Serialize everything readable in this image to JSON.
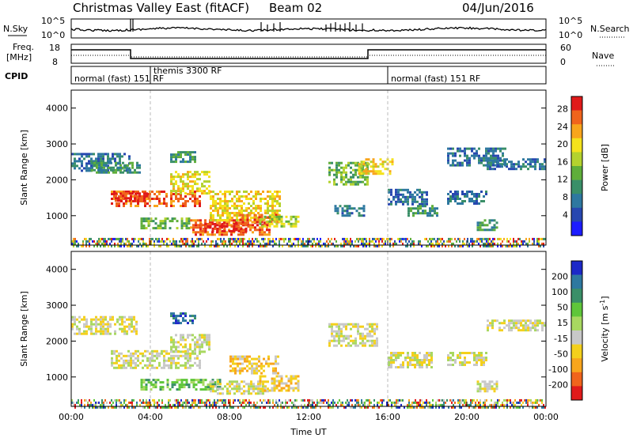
{
  "header": {
    "station_title": "Christmas Valley East (fitACF)",
    "beam": "Beam 02",
    "date": "04/Jun/2016"
  },
  "panels": {
    "sky": {
      "label": "N.Sky",
      "left_ticks": [
        "10^5",
        "10^0"
      ],
      "right_ticks": [
        "10^5",
        "10^0"
      ],
      "right_label": "N.Search"
    },
    "freq": {
      "label_line1": "Freq.",
      "label_line2": "[MHz]",
      "left_ticks": [
        "18",
        "8"
      ],
      "right_ticks": [
        "60",
        "0"
      ],
      "right_label": "Nave"
    },
    "cpid": {
      "label": "CPID",
      "modes": [
        {
          "text": "normal (fast) 151 RF",
          "start_hour": 0,
          "end_hour": 4
        },
        {
          "text": "themis 3300 RF",
          "start_hour": 4,
          "end_hour": 16
        },
        {
          "text": "normal (fast) 151 RF",
          "start_hour": 16,
          "end_hour": 24
        }
      ]
    }
  },
  "chart_data": [
    {
      "type": "heatmap",
      "name": "Power",
      "title": "",
      "xlabel": "",
      "ylabel": "Slant Range [km]",
      "ylim": [
        180,
        4500
      ],
      "xlim_hours": [
        0,
        24
      ],
      "yticks": [
        "1000",
        "2000",
        "3000",
        "4000"
      ],
      "colorbar": {
        "label": "Power [dB]",
        "ticks": [
          "4",
          "8",
          "12",
          "16",
          "20",
          "24",
          "28"
        ],
        "colors": [
          "#1c1cff",
          "#2747b0",
          "#2e78a0",
          "#3a8f68",
          "#5fae3a",
          "#b4d22e",
          "#f4e21c",
          "#f8a51c",
          "#f0641c",
          "#e01a1a"
        ]
      },
      "echo_regions": [
        {
          "t0": 0,
          "t1": 3,
          "r0": 2250,
          "r1": 2750,
          "level": 2
        },
        {
          "t0": 1,
          "t1": 3.5,
          "r0": 2200,
          "r1": 2500,
          "level": 3
        },
        {
          "t0": 2,
          "t1": 6.5,
          "r0": 1300,
          "r1": 1700,
          "level": 8
        },
        {
          "t0": 2.2,
          "t1": 4,
          "r0": 1450,
          "r1": 1650,
          "level": 9
        },
        {
          "t0": 5,
          "t1": 7,
          "r0": 1650,
          "r1": 2250,
          "level": 6
        },
        {
          "t0": 5,
          "t1": 6.2,
          "r0": 2500,
          "r1": 2800,
          "level": 3
        },
        {
          "t0": 3.5,
          "t1": 6,
          "r0": 650,
          "r1": 950,
          "level": 4
        },
        {
          "t0": 6,
          "t1": 10,
          "r0": 500,
          "r1": 900,
          "level": 8
        },
        {
          "t0": 6.5,
          "t1": 9,
          "r0": 550,
          "r1": 800,
          "level": 9
        },
        {
          "t0": 7,
          "t1": 10.5,
          "r0": 900,
          "r1": 1700,
          "level": 6
        },
        {
          "t0": 8.5,
          "t1": 10.5,
          "r0": 800,
          "r1": 1050,
          "level": 8
        },
        {
          "t0": 9.5,
          "t1": 11.5,
          "r0": 700,
          "r1": 1000,
          "level": 5
        },
        {
          "t0": 13,
          "t1": 15,
          "r0": 1900,
          "r1": 2500,
          "level": 4
        },
        {
          "t0": 14.5,
          "t1": 16.2,
          "r0": 2200,
          "r1": 2600,
          "level": 6
        },
        {
          "t0": 13.3,
          "t1": 14.8,
          "r0": 1000,
          "r1": 1300,
          "level": 2
        },
        {
          "t0": 16,
          "t1": 18,
          "r0": 1300,
          "r1": 1750,
          "level": 2
        },
        {
          "t0": 17,
          "t1": 18.5,
          "r0": 1000,
          "r1": 1300,
          "level": 3
        },
        {
          "t0": 19,
          "t1": 21,
          "r0": 1350,
          "r1": 1700,
          "level": 2
        },
        {
          "t0": 20.5,
          "t1": 21.5,
          "r0": 600,
          "r1": 900,
          "level": 3
        },
        {
          "t0": 21,
          "t1": 24,
          "r0": 2300,
          "r1": 2600,
          "level": 2
        },
        {
          "t0": 19,
          "t1": 22,
          "r0": 2400,
          "r1": 2900,
          "level": 2
        },
        {
          "t0": 0,
          "t1": 24,
          "r0": 180,
          "r1": 380,
          "level": 5
        }
      ]
    },
    {
      "type": "heatmap",
      "name": "Velocity",
      "title": "",
      "xlabel": "Time UT",
      "ylabel": "Slant Range [km]",
      "ylim": [
        180,
        4500
      ],
      "xlim_hours": [
        0,
        24
      ],
      "xticks": [
        "00:00",
        "04:00",
        "08:00",
        "12:00",
        "16:00",
        "20:00",
        "00:00"
      ],
      "yticks": [
        "1000",
        "2000",
        "3000",
        "4000"
      ],
      "colorbar": {
        "label": "Velocity [m s^-1]",
        "ticks": [
          "200",
          "100",
          "50",
          "15",
          "-15",
          "-50",
          "-100",
          "-200"
        ],
        "colors": [
          "#1c28c8",
          "#2e78a0",
          "#3a8f68",
          "#5fc63a",
          "#a8d860",
          "#c8c8c8",
          "#f4d01c",
          "#f8a51c",
          "#f0641c",
          "#e01a1a"
        ]
      },
      "echo_regions": [
        {
          "t0": 0,
          "t1": 3.3,
          "r0": 2200,
          "r1": 2700,
          "level": 5
        },
        {
          "t0": 2,
          "t1": 6.5,
          "r0": 1250,
          "r1": 1750,
          "level": 5
        },
        {
          "t0": 5,
          "t1": 7,
          "r0": 1700,
          "r1": 2200,
          "level": 5
        },
        {
          "t0": 5,
          "t1": 6.3,
          "r0": 2500,
          "r1": 2800,
          "level": 1
        },
        {
          "t0": 3.5,
          "t1": 7.5,
          "r0": 650,
          "r1": 950,
          "level": 3
        },
        {
          "t0": 7,
          "t1": 10,
          "r0": 550,
          "r1": 900,
          "level": 5
        },
        {
          "t0": 8,
          "t1": 10.5,
          "r0": 1100,
          "r1": 1600,
          "level": 6
        },
        {
          "t0": 9.5,
          "t1": 11.5,
          "r0": 650,
          "r1": 1050,
          "level": 6
        },
        {
          "t0": 13,
          "t1": 15.5,
          "r0": 1900,
          "r1": 2500,
          "level": 5
        },
        {
          "t0": 16,
          "t1": 18.2,
          "r0": 1300,
          "r1": 1700,
          "level": 5
        },
        {
          "t0": 19,
          "t1": 21,
          "r0": 1350,
          "r1": 1700,
          "level": 5
        },
        {
          "t0": 20.5,
          "t1": 21.5,
          "r0": 600,
          "r1": 900,
          "level": 5
        },
        {
          "t0": 21,
          "t1": 24,
          "r0": 2300,
          "r1": 2600,
          "level": 5
        },
        {
          "t0": 0,
          "t1": 24,
          "r0": 180,
          "r1": 380,
          "level": 6
        }
      ]
    }
  ]
}
